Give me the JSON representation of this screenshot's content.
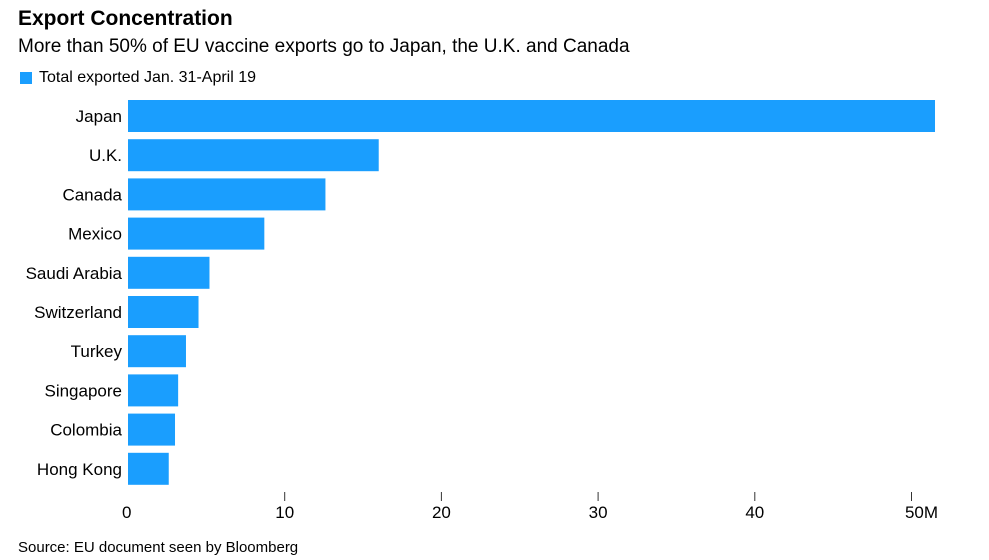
{
  "chart_data": {
    "type": "bar",
    "orientation": "horizontal",
    "title": "Export Concentration",
    "subtitle": "More than 50% of EU vaccine exports go to Japan, the U.K. and Canada",
    "legend": [
      "Total exported Jan. 31-April 19"
    ],
    "categories": [
      "Japan",
      "U.K.",
      "Canada",
      "Mexico",
      "Saudi Arabia",
      "Switzerland",
      "Turkey",
      "Singapore",
      "Colombia",
      "Hong Kong"
    ],
    "values": [
      51.5,
      16.0,
      12.6,
      8.7,
      5.2,
      4.5,
      3.7,
      3.2,
      3.0,
      2.6
    ],
    "xlim": [
      0,
      52
    ],
    "xticks": [
      0,
      10,
      20,
      30,
      40,
      50
    ],
    "xtick_labels": [
      "0",
      "10",
      "20",
      "30",
      "40",
      "50M"
    ],
    "color": "#1a9efe",
    "source": "Source: EU document seen by Bloomberg"
  }
}
